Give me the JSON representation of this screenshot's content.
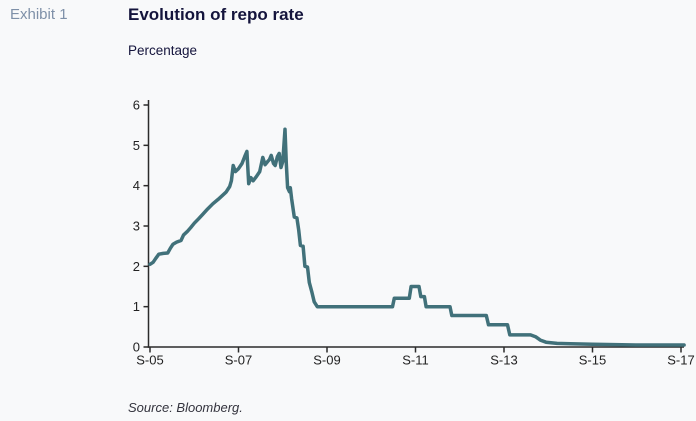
{
  "page": {
    "exhibit_label": "Exhibit 1",
    "title": "Evolution of repo rate",
    "subtitle": "Percentage",
    "source": "Source: Bloomberg."
  },
  "colors": {
    "line": "#41717a",
    "axis": "#2b2b2b",
    "title_text": "#14143c",
    "exhibit_text": "#7e90a8",
    "tick_text": "#222222",
    "source_text": "#34343e",
    "background": "#f8f9fa"
  },
  "chart_data": {
    "type": "line",
    "title": "Evolution of repo rate",
    "ylabel": "Percentage",
    "xlabel": "",
    "grid": false,
    "legend": "none",
    "ylim": [
      0,
      6
    ],
    "yticks": [
      0,
      1,
      2,
      3,
      4,
      5,
      6
    ],
    "xlim": [
      0,
      12.1
    ],
    "x_unit": "years since Sep-2005 (tick t values)",
    "xticks": [
      {
        "t": 0,
        "label": "S-05"
      },
      {
        "t": 2,
        "label": "S-07"
      },
      {
        "t": 4,
        "label": "S-09"
      },
      {
        "t": 6,
        "label": "S-11"
      },
      {
        "t": 8,
        "label": "S-13"
      },
      {
        "t": 10,
        "label": "S-15"
      },
      {
        "t": 12,
        "label": "S-17"
      }
    ],
    "series": [
      {
        "name": "Repo rate",
        "color": "#41717a",
        "points": [
          [
            0,
            2.05
          ],
          [
            0.07,
            2.1
          ],
          [
            0.13,
            2.2
          ],
          [
            0.2,
            2.3
          ],
          [
            0.3,
            2.32
          ],
          [
            0.4,
            2.33
          ],
          [
            0.46,
            2.45
          ],
          [
            0.52,
            2.55
          ],
          [
            0.6,
            2.6
          ],
          [
            0.7,
            2.64
          ],
          [
            0.76,
            2.78
          ],
          [
            0.84,
            2.86
          ],
          [
            0.92,
            2.96
          ],
          [
            1.0,
            3.07
          ],
          [
            1.1,
            3.18
          ],
          [
            1.2,
            3.3
          ],
          [
            1.3,
            3.42
          ],
          [
            1.42,
            3.55
          ],
          [
            1.54,
            3.66
          ],
          [
            1.64,
            3.76
          ],
          [
            1.72,
            3.84
          ],
          [
            1.8,
            3.98
          ],
          [
            1.84,
            4.12
          ],
          [
            1.88,
            4.5
          ],
          [
            1.93,
            4.35
          ],
          [
            2.0,
            4.42
          ],
          [
            2.08,
            4.55
          ],
          [
            2.14,
            4.72
          ],
          [
            2.19,
            4.85
          ],
          [
            2.23,
            4.05
          ],
          [
            2.28,
            4.2
          ],
          [
            2.33,
            4.12
          ],
          [
            2.4,
            4.22
          ],
          [
            2.48,
            4.35
          ],
          [
            2.55,
            4.7
          ],
          [
            2.6,
            4.52
          ],
          [
            2.66,
            4.6
          ],
          [
            2.7,
            4.65
          ],
          [
            2.74,
            4.75
          ],
          [
            2.79,
            4.55
          ],
          [
            2.83,
            4.5
          ],
          [
            2.88,
            4.72
          ],
          [
            2.92,
            4.8
          ],
          [
            2.96,
            4.45
          ],
          [
            3.0,
            4.6
          ],
          [
            3.05,
            5.4
          ],
          [
            3.08,
            4.55
          ],
          [
            3.11,
            3.95
          ],
          [
            3.15,
            3.85
          ],
          [
            3.17,
            3.95
          ],
          [
            3.2,
            3.68
          ],
          [
            3.26,
            3.22
          ],
          [
            3.32,
            3.2
          ],
          [
            3.36,
            2.9
          ],
          [
            3.4,
            2.52
          ],
          [
            3.46,
            2.5
          ],
          [
            3.5,
            2.0
          ],
          [
            3.56,
            1.98
          ],
          [
            3.6,
            1.6
          ],
          [
            3.66,
            1.35
          ],
          [
            3.71,
            1.12
          ],
          [
            3.78,
            1.0
          ],
          [
            4.2,
            1.0
          ],
          [
            4.7,
            1.0
          ],
          [
            5.2,
            1.0
          ],
          [
            5.48,
            1.0
          ],
          [
            5.52,
            1.21
          ],
          [
            5.86,
            1.21
          ],
          [
            5.9,
            1.5
          ],
          [
            6.08,
            1.5
          ],
          [
            6.12,
            1.25
          ],
          [
            6.2,
            1.25
          ],
          [
            6.24,
            1.0
          ],
          [
            6.78,
            1.0
          ],
          [
            6.82,
            0.78
          ],
          [
            7.6,
            0.78
          ],
          [
            7.65,
            0.55
          ],
          [
            8.08,
            0.55
          ],
          [
            8.13,
            0.3
          ],
          [
            8.6,
            0.3
          ],
          [
            8.72,
            0.25
          ],
          [
            8.82,
            0.17
          ],
          [
            8.95,
            0.12
          ],
          [
            9.2,
            0.09
          ],
          [
            9.5,
            0.08
          ],
          [
            10.0,
            0.07
          ],
          [
            10.5,
            0.06
          ],
          [
            11.0,
            0.05
          ],
          [
            11.5,
            0.05
          ],
          [
            12.07,
            0.05
          ]
        ]
      }
    ]
  }
}
